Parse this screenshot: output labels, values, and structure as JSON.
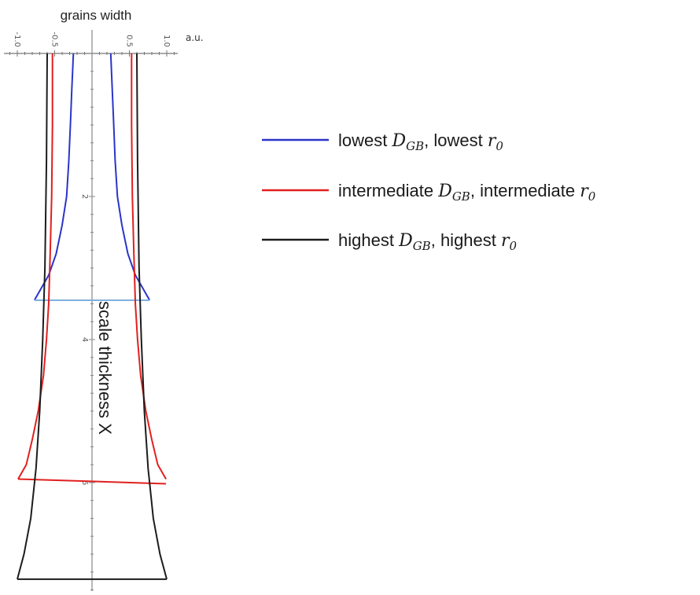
{
  "chart_data": {
    "type": "line",
    "xlabel": "grains width",
    "x_unit": "a.u.",
    "ylabel": "scale thickness X",
    "xlim": [
      -1.0,
      1.0
    ],
    "ylim": [
      0,
      7.6
    ],
    "x_ticks": [
      -1.0,
      -0.5,
      0.5,
      1.0
    ],
    "x_tick_labels": [
      "-1.0",
      "-0.5",
      "0.5",
      "1.0"
    ],
    "y_ticks": [
      2,
      4,
      6
    ],
    "y_tick_labels": [
      "2",
      "4",
      "6"
    ],
    "y_inverted": true,
    "series": [
      {
        "name": "lowest D_GB, lowest r_0",
        "legend_pre": "lowest ",
        "legend_mid": ", lowest ",
        "color": "#2a35c8",
        "cap_color": "#7fb0e0",
        "x_left": [
          -0.25,
          -0.27,
          -0.29,
          -0.31,
          -0.34,
          -0.4,
          -0.48,
          -0.58,
          -0.77
        ],
        "y": [
          0.0,
          0.5,
          1.0,
          1.5,
          2.0,
          2.4,
          2.8,
          3.1,
          3.45
        ]
      },
      {
        "name": "intermediate D_GB, intermediate r_0",
        "legend_pre": "intermediate ",
        "legend_mid": ", intermediate ",
        "color": "#e21f1f",
        "cap_color": "#e21f1f",
        "x_left": [
          -0.53,
          -0.53,
          -0.54,
          -0.56,
          -0.58,
          -0.61,
          -0.65,
          -0.72,
          -0.8,
          -0.88,
          -0.99
        ],
        "y": [
          0.0,
          1.0,
          2.0,
          2.8,
          3.5,
          4.0,
          4.5,
          5.0,
          5.4,
          5.75,
          5.95
        ]
      },
      {
        "name": "highest D_GB, highest r_0",
        "legend_pre": "highest ",
        "legend_mid": ", highest ",
        "color": "#1c1c1c",
        "cap_color": "#1c1c1c",
        "x_left": [
          -0.6,
          -0.61,
          -0.63,
          -0.66,
          -0.7,
          -0.75,
          -0.82,
          -0.91,
          -1.0
        ],
        "y": [
          0.0,
          1.5,
          3.0,
          4.0,
          5.0,
          5.8,
          6.5,
          7.0,
          7.35
        ]
      }
    ],
    "legend": {
      "position": "right",
      "sym_D": "D",
      "sym_D_sub": "GB",
      "sym_r": "r",
      "sym_r_sub": "0"
    },
    "grid": false
  }
}
